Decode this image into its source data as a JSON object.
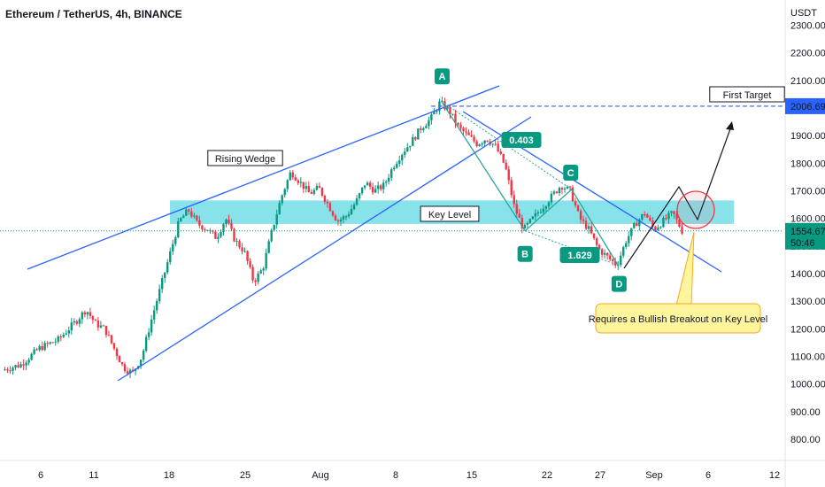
{
  "header": {
    "title": "Ethereum / TetherUS, 4h, BINANCE"
  },
  "chart_data": {
    "type": "candlestick",
    "y_unit": "USDT",
    "ylim": [
      740,
      2320
    ],
    "y_ticks": [
      "2300.00",
      "2200.00",
      "2100.00",
      "2000.00",
      "1900.00",
      "1800.00",
      "1700.00",
      "1600.00",
      "1500.00",
      "1400.00",
      "1300.00",
      "1200.00",
      "1100.00",
      "1000.00",
      "900.00",
      "800.00"
    ],
    "x_ticks": [
      "6",
      "11",
      "18",
      "25",
      "Aug",
      "8",
      "15",
      "22",
      "27",
      "Sep",
      "6",
      "12"
    ],
    "price_path": [
      [
        0,
        1050
      ],
      [
        2,
        1070
      ],
      [
        4,
        1130
      ],
      [
        6,
        1160
      ],
      [
        8,
        1230
      ],
      [
        9,
        1270
      ],
      [
        10,
        1220
      ],
      [
        11,
        1200
      ],
      [
        12,
        1130
      ],
      [
        13,
        1060
      ],
      [
        14,
        1040
      ],
      [
        15,
        1100
      ],
      [
        16,
        1230
      ],
      [
        17,
        1350
      ],
      [
        18,
        1470
      ],
      [
        19,
        1590
      ],
      [
        20,
        1630
      ],
      [
        21,
        1580
      ],
      [
        22,
        1560
      ],
      [
        23,
        1530
      ],
      [
        24,
        1600
      ],
      [
        25,
        1520
      ],
      [
        26,
        1480
      ],
      [
        27,
        1370
      ],
      [
        28,
        1420
      ],
      [
        29,
        1560
      ],
      [
        30,
        1680
      ],
      [
        31,
        1770
      ],
      [
        32,
        1730
      ],
      [
        33,
        1690
      ],
      [
        34,
        1710
      ],
      [
        35,
        1650
      ],
      [
        36,
        1590
      ],
      [
        37,
        1610
      ],
      [
        38,
        1660
      ],
      [
        39,
        1730
      ],
      [
        40,
        1700
      ],
      [
        41,
        1720
      ],
      [
        42,
        1790
      ],
      [
        43,
        1840
      ],
      [
        44,
        1880
      ],
      [
        45,
        1930
      ],
      [
        46,
        1960
      ],
      [
        47,
        2020
      ],
      [
        48,
        1990
      ],
      [
        49,
        1930
      ],
      [
        50,
        1900
      ],
      [
        51,
        1870
      ],
      [
        52,
        1890
      ],
      [
        53,
        1860
      ],
      [
        54,
        1790
      ],
      [
        55,
        1640
      ],
      [
        56,
        1560
      ],
      [
        57,
        1600
      ],
      [
        58,
        1640
      ],
      [
        59,
        1680
      ],
      [
        60,
        1720
      ],
      [
        61,
        1700
      ],
      [
        62,
        1600
      ],
      [
        63,
        1560
      ],
      [
        64,
        1490
      ],
      [
        65,
        1460
      ],
      [
        66,
        1430
      ],
      [
        67,
        1520
      ],
      [
        68,
        1580
      ],
      [
        69,
        1620
      ],
      [
        70,
        1560
      ],
      [
        71,
        1590
      ],
      [
        72,
        1620
      ],
      [
        73,
        1555
      ]
    ],
    "levels": {
      "key_level_low": 1580,
      "key_level_high": 1665,
      "first_target": 2006.69,
      "current_price": 1554.67
    },
    "points": [
      {
        "label": "A",
        "x_index": 47,
        "price": 2025
      },
      {
        "label": "B",
        "x_index": 56,
        "price": 1555
      },
      {
        "label": "C",
        "x_index": 61,
        "price": 1705
      },
      {
        "label": "D",
        "x_index": 66,
        "price": 1430
      }
    ],
    "ratios": [
      "0.403",
      "1.629"
    ],
    "annotations": {
      "rising_wedge": "Rising Wedge",
      "key_level": "Key Level",
      "first_target": "First Target",
      "callout": "Requires a Bullish Breakout on Key Level"
    },
    "price_tags": {
      "target": "2006.69",
      "current": "1554.67",
      "countdown": "50:46"
    },
    "colors": {
      "up": "#089981",
      "down": "#f23645",
      "zone": "#72dde6",
      "line": "#2962ff",
      "pattern": "#26a69a",
      "tag_blue": "#2962ff",
      "tag_green": "#089981"
    }
  }
}
